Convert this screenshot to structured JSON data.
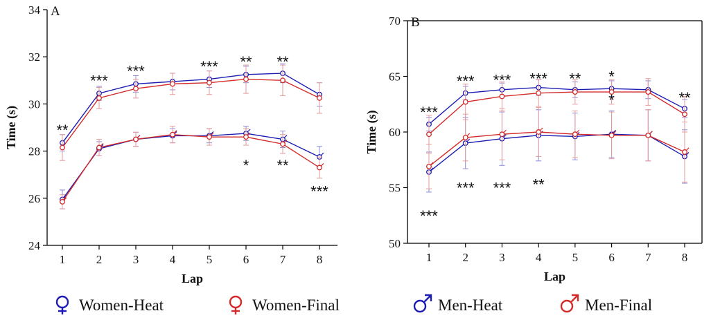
{
  "colors": {
    "heat": "#1c1cb4",
    "final": "#d42a2a",
    "axis": "#000000",
    "heat_bar": "#8a8ad8",
    "final_bar": "#e69a9a"
  },
  "legend": [
    {
      "label": "Women-Heat",
      "color": "#1c1cb4",
      "symbol": "female"
    },
    {
      "label": "Women-Final",
      "color": "#d42a2a",
      "symbol": "female"
    },
    {
      "label": "Men-Heat",
      "color": "#1c1cb4",
      "symbol": "male"
    },
    {
      "label": "Men-Final",
      "color": "#d42a2a",
      "symbol": "male"
    }
  ],
  "chart_data": [
    {
      "type": "line",
      "panel": "A",
      "xlabel": "Lap",
      "ylabel": "Time (s)",
      "categories": [
        "1",
        "2",
        "3",
        "4",
        "5",
        "6",
        "7",
        "8"
      ],
      "ylim": [
        24,
        34
      ],
      "yticks": [
        "24",
        "26",
        "28",
        "30",
        "32",
        "34"
      ],
      "series": [
        {
          "name": "Women-Heat",
          "symbol": "female",
          "color": "heat",
          "values": [
            28.35,
            30.45,
            30.85,
            30.95,
            31.05,
            31.25,
            31.3,
            30.4
          ],
          "errors": [
            0.35,
            0.3,
            0.35,
            0.35,
            0.35,
            0.35,
            0.4,
            0.5
          ]
        },
        {
          "name": "Women-Final",
          "symbol": "female",
          "color": "final",
          "values": [
            28.15,
            30.25,
            30.65,
            30.85,
            30.9,
            31.05,
            31.0,
            30.25
          ],
          "errors": [
            0.55,
            0.45,
            0.4,
            0.45,
            0.5,
            0.6,
            0.65,
            0.65
          ]
        },
        {
          "name": "Men-Heat",
          "symbol": "male",
          "color": "heat",
          "values": [
            25.95,
            28.1,
            28.5,
            28.65,
            28.65,
            28.75,
            28.5,
            27.75
          ],
          "errors": [
            0.4,
            0.3,
            0.3,
            0.3,
            0.3,
            0.3,
            0.35,
            0.45
          ]
        },
        {
          "name": "Men-Final",
          "symbol": "male",
          "color": "final",
          "values": [
            25.85,
            28.15,
            28.5,
            28.7,
            28.6,
            28.6,
            28.3,
            27.3
          ],
          "errors": [
            0.3,
            0.35,
            0.3,
            0.35,
            0.35,
            0.35,
            0.4,
            0.45
          ]
        }
      ],
      "annotations": [
        {
          "lap": 1,
          "y": 28.9,
          "text": "**"
        },
        {
          "lap": 2,
          "y": 31.0,
          "text": "***"
        },
        {
          "lap": 3,
          "y": 31.4,
          "text": "***"
        },
        {
          "lap": 5,
          "y": 31.6,
          "text": "***"
        },
        {
          "lap": 6,
          "y": 31.8,
          "text": "**"
        },
        {
          "lap": 7,
          "y": 31.8,
          "text": "**"
        },
        {
          "lap": 6,
          "y": 27.4,
          "text": "*"
        },
        {
          "lap": 7,
          "y": 27.4,
          "text": "**"
        },
        {
          "lap": 8,
          "y": 26.3,
          "text": "***"
        }
      ]
    },
    {
      "type": "line",
      "panel": "B",
      "xlabel": "Lap",
      "ylabel": "Time (s)",
      "categories": [
        "1",
        "2",
        "3",
        "4",
        "5",
        "6",
        "7",
        "8"
      ],
      "ylim": [
        50,
        70
      ],
      "yticks": [
        "50",
        "55",
        "60",
        "65",
        "70"
      ],
      "series": [
        {
          "name": "Women-Heat",
          "symbol": "female",
          "color": "heat",
          "values": [
            60.7,
            63.5,
            63.8,
            64.0,
            63.8,
            63.9,
            63.8,
            62.1
          ],
          "errors": [
            0.6,
            0.6,
            0.6,
            0.7,
            0.7,
            0.7,
            0.8,
            0.8
          ]
        },
        {
          "name": "Women-Final",
          "symbol": "female",
          "color": "final",
          "values": [
            59.8,
            62.7,
            63.2,
            63.5,
            63.6,
            63.6,
            63.6,
            61.6
          ],
          "errors": [
            1.7,
            1.6,
            1.3,
            1.2,
            1.1,
            1.1,
            1.2,
            1.6
          ]
        },
        {
          "name": "Men-Heat",
          "symbol": "male",
          "color": "heat",
          "values": [
            56.4,
            59.0,
            59.4,
            59.7,
            59.6,
            59.8,
            59.7,
            57.8
          ],
          "errors": [
            1.8,
            2.3,
            2.4,
            2.3,
            2.1,
            2.1,
            2.3,
            2.4
          ]
        },
        {
          "name": "Men-Final",
          "symbol": "male",
          "color": "final",
          "values": [
            56.9,
            59.5,
            59.8,
            60.0,
            59.8,
            59.7,
            59.7,
            58.2
          ],
          "errors": [
            2.0,
            2.1,
            2.3,
            2.2,
            2.1,
            2.1,
            2.3,
            2.7
          ]
        }
      ],
      "annotations": [
        {
          "lap": 1,
          "y": 61.8,
          "text": "***"
        },
        {
          "lap": 2,
          "y": 64.6,
          "text": "***"
        },
        {
          "lap": 3,
          "y": 64.7,
          "text": "***"
        },
        {
          "lap": 4,
          "y": 64.8,
          "text": "***"
        },
        {
          "lap": 5,
          "y": 64.8,
          "text": "**"
        },
        {
          "lap": 6,
          "y": 65.0,
          "text": "*"
        },
        {
          "lap": 6,
          "y": 62.9,
          "text": "*"
        },
        {
          "lap": 8,
          "y": 63.1,
          "text": "**"
        },
        {
          "lap": 2,
          "y": 55.0,
          "text": "***"
        },
        {
          "lap": 3,
          "y": 55.0,
          "text": "***"
        },
        {
          "lap": 4,
          "y": 55.3,
          "text": "**"
        },
        {
          "lap": 1,
          "y": 52.5,
          "text": "***"
        }
      ]
    }
  ]
}
